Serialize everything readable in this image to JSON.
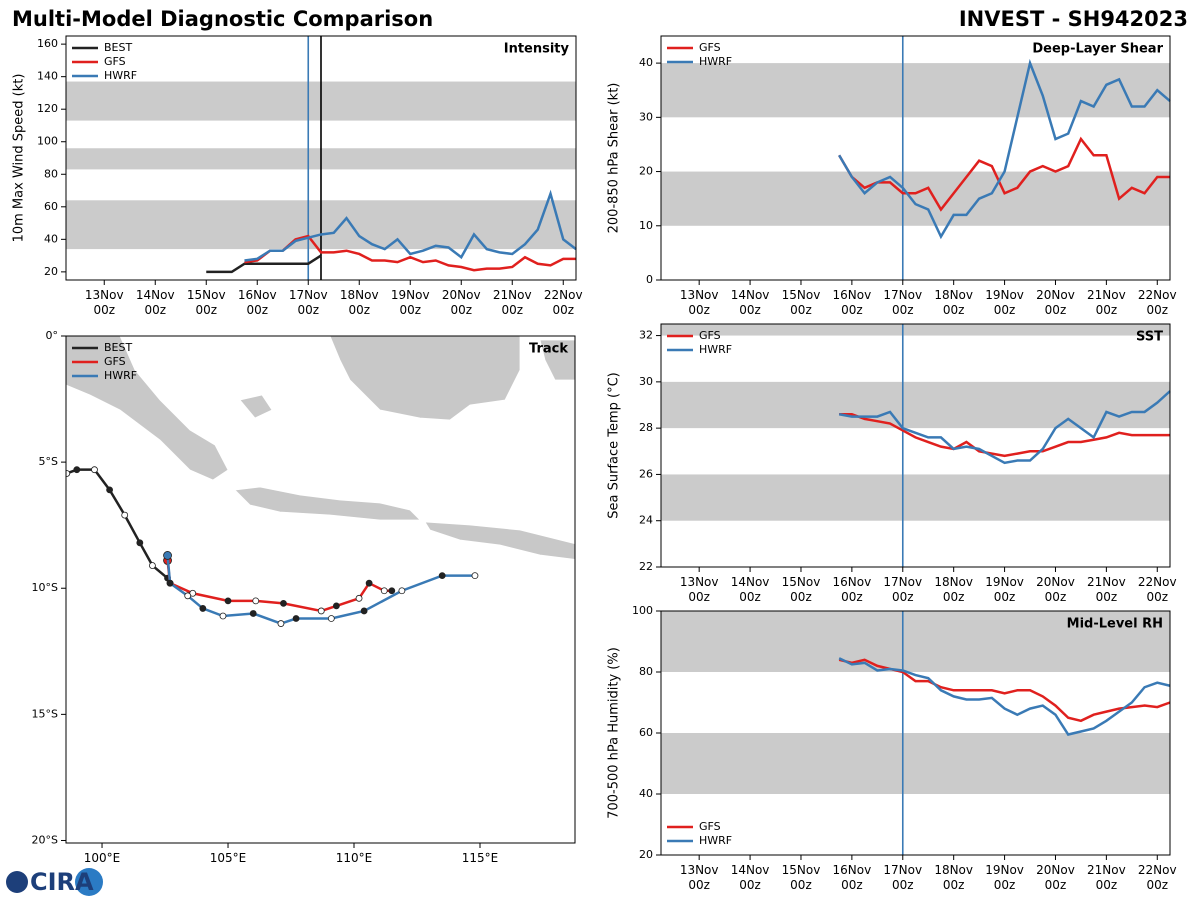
{
  "header": {
    "title": "Multi-Model Diagnostic Comparison",
    "subtitle": "INVEST - SH942023"
  },
  "logo": "CIRA",
  "chart_data": [
    {
      "type": "line",
      "label": "Intensity",
      "ylabel": "10m Max Wind Speed (kt)",
      "xlim": [
        "12Nov 06z",
        "22Nov 06z"
      ],
      "xticks": [
        "13Nov 00z",
        "14Nov 00z",
        "15Nov 00z",
        "16Nov 00z",
        "17Nov 00z",
        "18Nov 00z",
        "19Nov 00z",
        "20Nov 00z",
        "21Nov 00z",
        "22Nov 00z"
      ],
      "ylim": [
        15,
        165
      ],
      "yticks": [
        20,
        40,
        60,
        80,
        100,
        120,
        140,
        160
      ],
      "bands": [
        [
          34,
          64
        ],
        [
          83,
          96
        ],
        [
          113,
          137
        ]
      ],
      "vlines": [
        {
          "x": "17Nov 00z",
          "color": "#3a7ab5"
        },
        {
          "x": "17Nov 06z",
          "color": "#000000"
        }
      ],
      "legend": "upper left",
      "series": [
        {
          "name": "BEST",
          "color": "#222222",
          "x": [
            "15Nov 00z",
            "15Nov 06z",
            "15Nov 12z",
            "15Nov 18z",
            "16Nov 00z",
            "16Nov 06z",
            "16Nov 12z",
            "16Nov 18z",
            "17Nov 00z",
            "17Nov 06z"
          ],
          "values": [
            20,
            20,
            20,
            25,
            25,
            25,
            25,
            25,
            25,
            30
          ]
        },
        {
          "name": "GFS",
          "color": "#e0201e",
          "x": [
            "15Nov 18z",
            "16Nov 00z",
            "16Nov 06z",
            "16Nov 12z",
            "16Nov 18z",
            "17Nov 00z",
            "17Nov 06z",
            "17Nov 12z",
            "17Nov 18z",
            "18Nov 00z",
            "18Nov 06z",
            "18Nov 12z",
            "18Nov 18z",
            "19Nov 00z",
            "19Nov 06z",
            "19Nov 12z",
            "19Nov 18z",
            "20Nov 00z",
            "20Nov 06z",
            "20Nov 12z",
            "20Nov 18z",
            "21Nov 00z",
            "21Nov 06z",
            "21Nov 12z",
            "21Nov 18z",
            "22Nov 00z",
            "22Nov 06z"
          ],
          "values": [
            26,
            27,
            33,
            33,
            40,
            42,
            32,
            32,
            33,
            31,
            27,
            27,
            26,
            29,
            26,
            27,
            24,
            23,
            21,
            22,
            22,
            23,
            29,
            25,
            24,
            28,
            28
          ]
        },
        {
          "name": "HWRF",
          "color": "#3a7ab5",
          "x": [
            "15Nov 18z",
            "16Nov 00z",
            "16Nov 06z",
            "16Nov 12z",
            "16Nov 18z",
            "17Nov 00z",
            "17Nov 06z",
            "17Nov 12z",
            "17Nov 18z",
            "18Nov 00z",
            "18Nov 06z",
            "18Nov 12z",
            "18Nov 18z",
            "19Nov 00z",
            "19Nov 06z",
            "19Nov 12z",
            "19Nov 18z",
            "20Nov 00z",
            "20Nov 06z",
            "20Nov 12z",
            "20Nov 18z",
            "21Nov 00z",
            "21Nov 06z",
            "21Nov 12z",
            "21Nov 18z",
            "22Nov 00z",
            "22Nov 06z"
          ],
          "values": [
            27,
            28,
            33,
            33,
            39,
            41,
            43,
            44,
            53,
            42,
            37,
            34,
            40,
            31,
            33,
            36,
            35,
            29,
            43,
            34,
            32,
            31,
            37,
            46,
            68,
            40,
            34
          ]
        }
      ]
    },
    {
      "type": "track",
      "label": "Track",
      "xlim": [
        98.57,
        118.77
      ],
      "ylim": [
        -20.1,
        0
      ],
      "xticks": [
        {
          "value": 100,
          "label": "100°E"
        },
        {
          "value": 105,
          "label": "105°E"
        },
        {
          "value": 110,
          "label": "110°E"
        },
        {
          "value": 115,
          "label": "115°E"
        }
      ],
      "yticks": [
        {
          "value": 0,
          "label": "0°"
        },
        {
          "value": -5,
          "label": "5°S"
        },
        {
          "value": -10,
          "label": "10°S"
        },
        {
          "value": -15,
          "label": "15°S"
        },
        {
          "value": -20,
          "label": "20°S"
        }
      ],
      "legend": "upper left",
      "series": [
        {
          "name": "BEST",
          "color": "#222222",
          "x": [
            98.6,
            99.0,
            99.7,
            100.3,
            100.9,
            101.5,
            102.0,
            102.6
          ],
          "values": [
            -5.45,
            -5.3,
            -5.3,
            -6.1,
            -7.1,
            -8.2,
            -9.1,
            -9.6
          ]
        },
        {
          "name": "GFS",
          "color": "#e0201e",
          "x": [
            102.6,
            102.7,
            103.6,
            105.0,
            106.1,
            107.2,
            108.7,
            109.3,
            110.2,
            110.6,
            111.2,
            111.5
          ],
          "values": [
            -8.9,
            -9.8,
            -10.2,
            -10.5,
            -10.5,
            -10.6,
            -10.9,
            -10.7,
            -10.4,
            -9.8,
            -10.1,
            -10.1
          ]
        },
        {
          "name": "HWRF",
          "color": "#3a7ab5",
          "x": [
            102.6,
            102.7,
            103.4,
            104.0,
            104.8,
            106.0,
            107.1,
            107.7,
            109.1,
            110.4,
            111.9,
            113.5,
            114.8
          ],
          "values": [
            -8.7,
            -9.8,
            -10.3,
            -10.8,
            -11.1,
            -11.0,
            -11.4,
            -11.2,
            -11.2,
            -10.9,
            -10.1,
            -9.5,
            -9.5
          ]
        }
      ]
    },
    {
      "type": "line",
      "label": "Deep-Layer Shear",
      "ylabel": "200-850 hPa Shear (kt)",
      "xlim": [
        "12Nov 06z",
        "22Nov 06z"
      ],
      "xticks": [
        "13Nov 00z",
        "14Nov 00z",
        "15Nov 00z",
        "16Nov 00z",
        "17Nov 00z",
        "18Nov 00z",
        "19Nov 00z",
        "20Nov 00z",
        "21Nov 00z",
        "22Nov 00z"
      ],
      "ylim": [
        0,
        45
      ],
      "yticks": [
        0,
        10,
        20,
        30,
        40
      ],
      "bands": [
        [
          10,
          20
        ],
        [
          30,
          40
        ]
      ],
      "vlines": [
        {
          "x": "17Nov 00z",
          "color": "#3a7ab5"
        }
      ],
      "legend": "upper left",
      "series": [
        {
          "name": "GFS",
          "color": "#e0201e",
          "x": [
            "15Nov 18z",
            "16Nov 00z",
            "16Nov 06z",
            "16Nov 12z",
            "16Nov 18z",
            "17Nov 00z",
            "17Nov 06z",
            "17Nov 12z",
            "17Nov 18z",
            "18Nov 00z",
            "18Nov 06z",
            "18Nov 12z",
            "18Nov 18z",
            "19Nov 00z",
            "19Nov 06z",
            "19Nov 12z",
            "19Nov 18z",
            "20Nov 00z",
            "20Nov 06z",
            "20Nov 12z",
            "20Nov 18z",
            "21Nov 00z",
            "21Nov 06z",
            "21Nov 12z",
            "21Nov 18z",
            "22Nov 00z",
            "22Nov 06z"
          ],
          "values": [
            23,
            19,
            17,
            18,
            18,
            16,
            16,
            17,
            13,
            16,
            19,
            22,
            21,
            16,
            17,
            20,
            21,
            20,
            21,
            26,
            23,
            23,
            15,
            17,
            16,
            19,
            19
          ]
        },
        {
          "name": "HWRF",
          "color": "#3a7ab5",
          "x": [
            "15Nov 18z",
            "16Nov 00z",
            "16Nov 06z",
            "16Nov 12z",
            "16Nov 18z",
            "17Nov 00z",
            "17Nov 06z",
            "17Nov 12z",
            "17Nov 18z",
            "18Nov 00z",
            "18Nov 06z",
            "18Nov 12z",
            "18Nov 18z",
            "19Nov 00z",
            "19Nov 06z",
            "19Nov 12z",
            "19Nov 18z",
            "20Nov 00z",
            "20Nov 06z",
            "20Nov 12z",
            "20Nov 18z",
            "21Nov 00z",
            "21Nov 06z",
            "21Nov 12z",
            "21Nov 18z",
            "22Nov 00z",
            "22Nov 06z"
          ],
          "values": [
            23,
            19,
            16,
            18,
            19,
            17,
            14,
            13,
            8,
            12,
            12,
            15,
            16,
            20,
            30,
            40,
            34,
            26,
            27,
            33,
            32,
            36,
            37,
            32,
            32,
            35,
            33
          ]
        }
      ]
    },
    {
      "type": "line",
      "label": "SST",
      "ylabel": "Sea Surface Temp (°C)",
      "xlim": [
        "12Nov 06z",
        "22Nov 06z"
      ],
      "xticks": [
        "13Nov 00z",
        "14Nov 00z",
        "15Nov 00z",
        "16Nov 00z",
        "17Nov 00z",
        "18Nov 00z",
        "19Nov 00z",
        "20Nov 00z",
        "21Nov 00z",
        "22Nov 00z"
      ],
      "ylim": [
        22,
        32.5
      ],
      "yticks": [
        22,
        24,
        26,
        28,
        30,
        32
      ],
      "bands": [
        [
          24,
          26
        ],
        [
          28,
          30
        ],
        [
          32,
          32.5
        ]
      ],
      "vlines": [
        {
          "x": "17Nov 00z",
          "color": "#3a7ab5"
        }
      ],
      "legend": "upper left",
      "series": [
        {
          "name": "GFS",
          "color": "#e0201e",
          "x": [
            "15Nov 18z",
            "16Nov 00z",
            "16Nov 06z",
            "16Nov 12z",
            "16Nov 18z",
            "17Nov 00z",
            "17Nov 06z",
            "17Nov 12z",
            "17Nov 18z",
            "18Nov 00z",
            "18Nov 06z",
            "18Nov 12z",
            "18Nov 18z",
            "19Nov 00z",
            "19Nov 06z",
            "19Nov 12z",
            "19Nov 18z",
            "20Nov 00z",
            "20Nov 06z",
            "20Nov 12z",
            "20Nov 18z",
            "21Nov 00z",
            "21Nov 06z",
            "21Nov 12z",
            "21Nov 18z",
            "22Nov 00z",
            "22Nov 06z"
          ],
          "values": [
            28.6,
            28.6,
            28.4,
            28.3,
            28.2,
            27.9,
            27.6,
            27.4,
            27.2,
            27.1,
            27.4,
            27.0,
            26.9,
            26.8,
            26.9,
            27.0,
            27.0,
            27.2,
            27.4,
            27.4,
            27.5,
            27.6,
            27.8,
            27.7,
            27.7,
            27.7,
            27.7
          ]
        },
        {
          "name": "HWRF",
          "color": "#3a7ab5",
          "x": [
            "15Nov 18z",
            "16Nov 00z",
            "16Nov 06z",
            "16Nov 12z",
            "16Nov 18z",
            "17Nov 00z",
            "17Nov 06z",
            "17Nov 12z",
            "17Nov 18z",
            "18Nov 00z",
            "18Nov 06z",
            "18Nov 12z",
            "18Nov 18z",
            "19Nov 00z",
            "19Nov 06z",
            "19Nov 12z",
            "19Nov 18z",
            "20Nov 00z",
            "20Nov 06z",
            "20Nov 12z",
            "20Nov 18z",
            "21Nov 00z",
            "21Nov 06z",
            "21Nov 12z",
            "21Nov 18z",
            "22Nov 00z",
            "22Nov 06z"
          ],
          "values": [
            28.6,
            28.5,
            28.5,
            28.5,
            28.7,
            28.0,
            27.8,
            27.6,
            27.6,
            27.1,
            27.2,
            27.1,
            26.8,
            26.5,
            26.6,
            26.6,
            27.1,
            28.0,
            28.4,
            28.0,
            27.6,
            28.7,
            28.5,
            28.7,
            28.7,
            29.1,
            29.6
          ]
        }
      ]
    },
    {
      "type": "line",
      "label": "Mid-Level RH",
      "ylabel": "700-500 hPa Humidity (%)",
      "xlim": [
        "12Nov 06z",
        "22Nov 06z"
      ],
      "xticks": [
        "13Nov 00z",
        "14Nov 00z",
        "15Nov 00z",
        "16Nov 00z",
        "17Nov 00z",
        "18Nov 00z",
        "19Nov 00z",
        "20Nov 00z",
        "21Nov 00z",
        "22Nov 00z"
      ],
      "ylim": [
        20,
        100
      ],
      "yticks": [
        20,
        40,
        60,
        80,
        100
      ],
      "bands": [
        [
          40,
          60
        ],
        [
          80,
          100
        ]
      ],
      "vlines": [
        {
          "x": "17Nov 00z",
          "color": "#3a7ab5"
        }
      ],
      "legend": "lower left",
      "series": [
        {
          "name": "GFS",
          "color": "#e0201e",
          "x": [
            "15Nov 18z",
            "16Nov 00z",
            "16Nov 06z",
            "16Nov 12z",
            "16Nov 18z",
            "17Nov 00z",
            "17Nov 06z",
            "17Nov 12z",
            "17Nov 18z",
            "18Nov 00z",
            "18Nov 06z",
            "18Nov 12z",
            "18Nov 18z",
            "19Nov 00z",
            "19Nov 06z",
            "19Nov 12z",
            "19Nov 18z",
            "20Nov 00z",
            "20Nov 06z",
            "20Nov 12z",
            "20Nov 18z",
            "21Nov 00z",
            "21Nov 06z",
            "21Nov 12z",
            "21Nov 18z",
            "22Nov 00z",
            "22Nov 06z"
          ],
          "values": [
            84,
            83,
            84,
            82,
            81,
            80,
            77,
            77,
            75,
            74,
            74,
            74,
            74,
            73,
            74,
            74,
            72,
            69,
            65,
            64,
            66,
            67,
            68,
            68.5,
            69,
            68.5,
            70
          ]
        },
        {
          "name": "HWRF",
          "color": "#3a7ab5",
          "x": [
            "15Nov 18z",
            "16Nov 00z",
            "16Nov 06z",
            "16Nov 12z",
            "16Nov 18z",
            "17Nov 00z",
            "17Nov 06z",
            "17Nov 12z",
            "17Nov 18z",
            "18Nov 00z",
            "18Nov 06z",
            "18Nov 12z",
            "18Nov 18z",
            "19Nov 00z",
            "19Nov 06z",
            "19Nov 12z",
            "19Nov 18z",
            "20Nov 00z",
            "20Nov 06z",
            "20Nov 12z",
            "20Nov 18z",
            "21Nov 00z",
            "21Nov 06z",
            "21Nov 12z",
            "21Nov 18z",
            "22Nov 00z",
            "22Nov 06z"
          ],
          "values": [
            84.5,
            82.5,
            83,
            80.5,
            81,
            80.5,
            79,
            78,
            74,
            72,
            71,
            71,
            71.5,
            68,
            66,
            68,
            69,
            66,
            59.5,
            60.5,
            61.5,
            64,
            67,
            70,
            75,
            76.5,
            75.5
          ]
        }
      ]
    }
  ]
}
